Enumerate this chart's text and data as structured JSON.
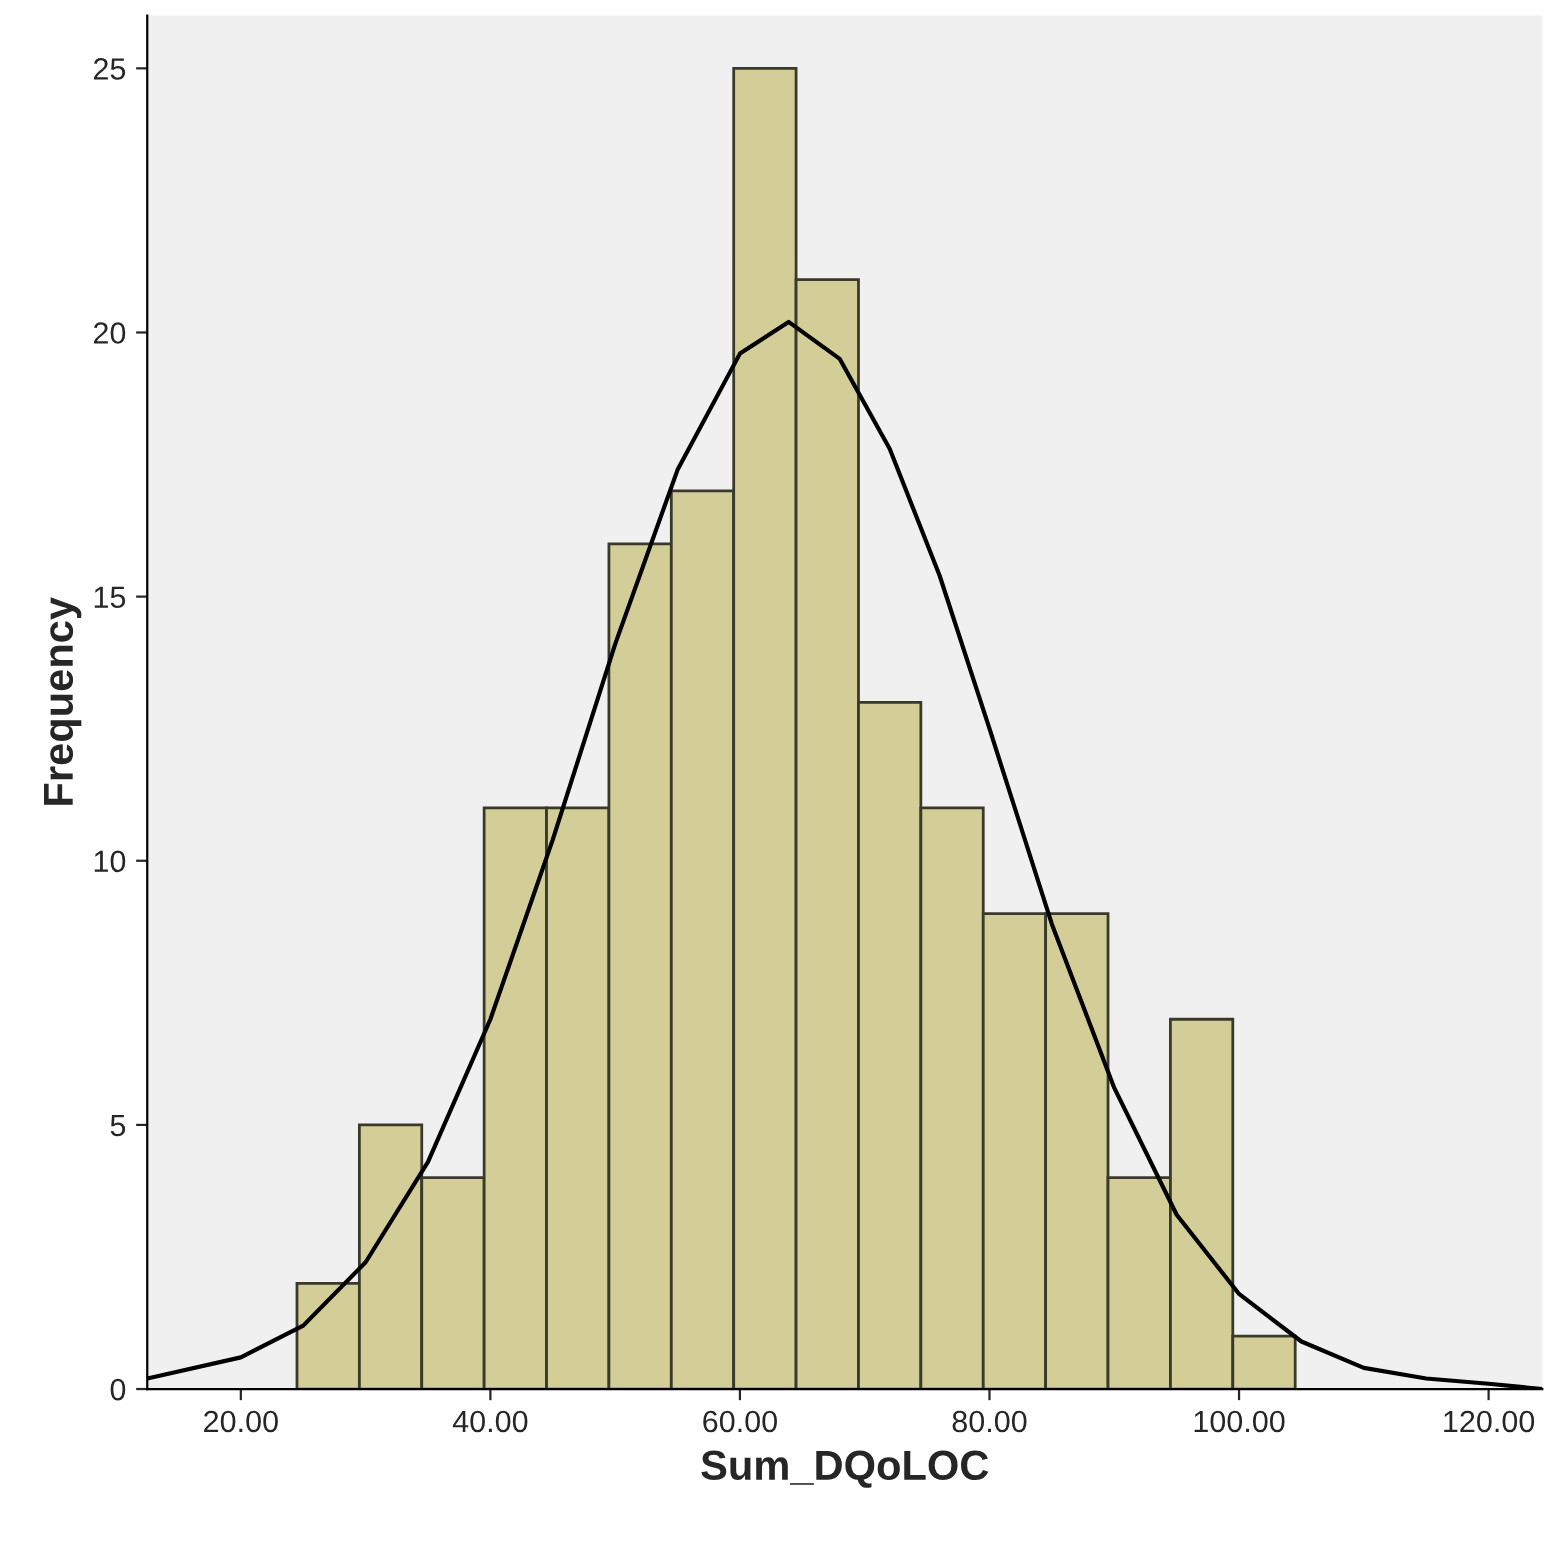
{
  "chart_data": {
    "type": "histogram",
    "xlabel": "Sum_DQoLOC",
    "ylabel": "Frequency",
    "bins": [
      24.5,
      29.5,
      34.5,
      39.5,
      44.5,
      49.5,
      54.5,
      59.5,
      64.5,
      69.5,
      74.5,
      79.5,
      84.5,
      89.5,
      94.5,
      99.5,
      104.5
    ],
    "series": [
      {
        "color": "#d3ce98",
        "values": [
          2,
          5,
          4,
          11,
          11,
          16,
          17,
          25,
          21,
          13,
          11,
          9,
          9,
          4,
          7,
          1
        ]
      },
      {
        "type": "line",
        "color": "#000000",
        "x": [
          12.5,
          20,
          25,
          30,
          35,
          40,
          45,
          50,
          55,
          60,
          63.9,
          68,
          72,
          76,
          80,
          85,
          90,
          95,
          100,
          105,
          110,
          115,
          120,
          124.3
        ],
        "values": [
          0.2,
          0.6,
          1.2,
          2.4,
          4.3,
          7.0,
          10.4,
          14.1,
          17.4,
          19.6,
          20.2,
          19.5,
          17.8,
          15.4,
          12.5,
          8.8,
          5.7,
          3.3,
          1.8,
          0.9,
          0.4,
          0.2,
          0.1,
          0.0
        ]
      }
    ],
    "xlim": [
      12.5,
      124.3
    ],
    "xticks": [
      {
        "value": 20,
        "label": "20.00"
      },
      {
        "value": 40,
        "label": "40.00"
      },
      {
        "value": 60,
        "label": "60.00"
      },
      {
        "value": 80,
        "label": "80.00"
      },
      {
        "value": 100,
        "label": "100.00"
      },
      {
        "value": 120,
        "label": "120.00"
      }
    ],
    "ylim": [
      0,
      26
    ],
    "yticks": [
      0,
      5,
      10,
      15,
      20,
      25
    ],
    "grid": false
  }
}
